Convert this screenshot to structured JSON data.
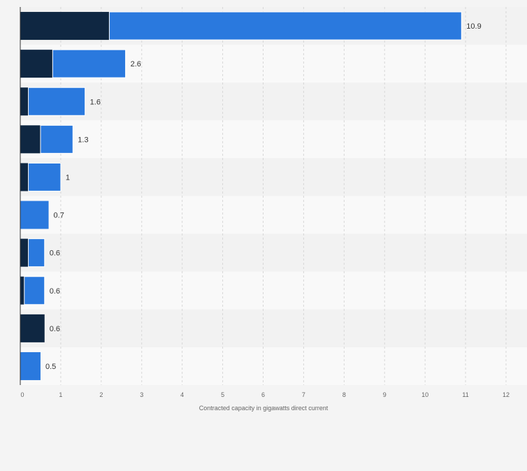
{
  "chart_data": {
    "type": "bar",
    "orientation": "horizontal",
    "stacked": true,
    "categories": [
      "",
      "",
      "",
      "",
      "",
      "",
      "",
      "",
      "",
      ""
    ],
    "series": [
      {
        "values": [
          2.2,
          0.8,
          0.2,
          0.5,
          0.2,
          0.0,
          0.2,
          0.1,
          0.6,
          0.0
        ],
        "color": "#0f2742"
      },
      {
        "values": [
          8.7,
          1.8,
          1.4,
          0.8,
          0.8,
          0.7,
          0.4,
          0.5,
          0.0,
          0.5
        ],
        "color": "#2a79de"
      }
    ],
    "totals": [
      10.9,
      2.6,
      1.6,
      1.3,
      1,
      0.7,
      0.6,
      0.6,
      0.6,
      0.5
    ],
    "total_labels": [
      "10.9",
      "2.6",
      "1.6",
      "1.3",
      "1",
      "0.7",
      "0.6",
      "0.6",
      "0.6",
      "0.5"
    ],
    "xlim": [
      0,
      12
    ],
    "xticks": [
      0,
      1,
      2,
      3,
      4,
      5,
      6,
      7,
      8,
      9,
      10,
      11,
      12
    ],
    "xlabel": "Contracted capacity in gigawatts direct current",
    "ylabel": "",
    "title": "",
    "grid": true,
    "row_band_colors": [
      "#f2f2f2",
      "#f9f9f9"
    ],
    "grid_color": "#d7d7d7"
  }
}
